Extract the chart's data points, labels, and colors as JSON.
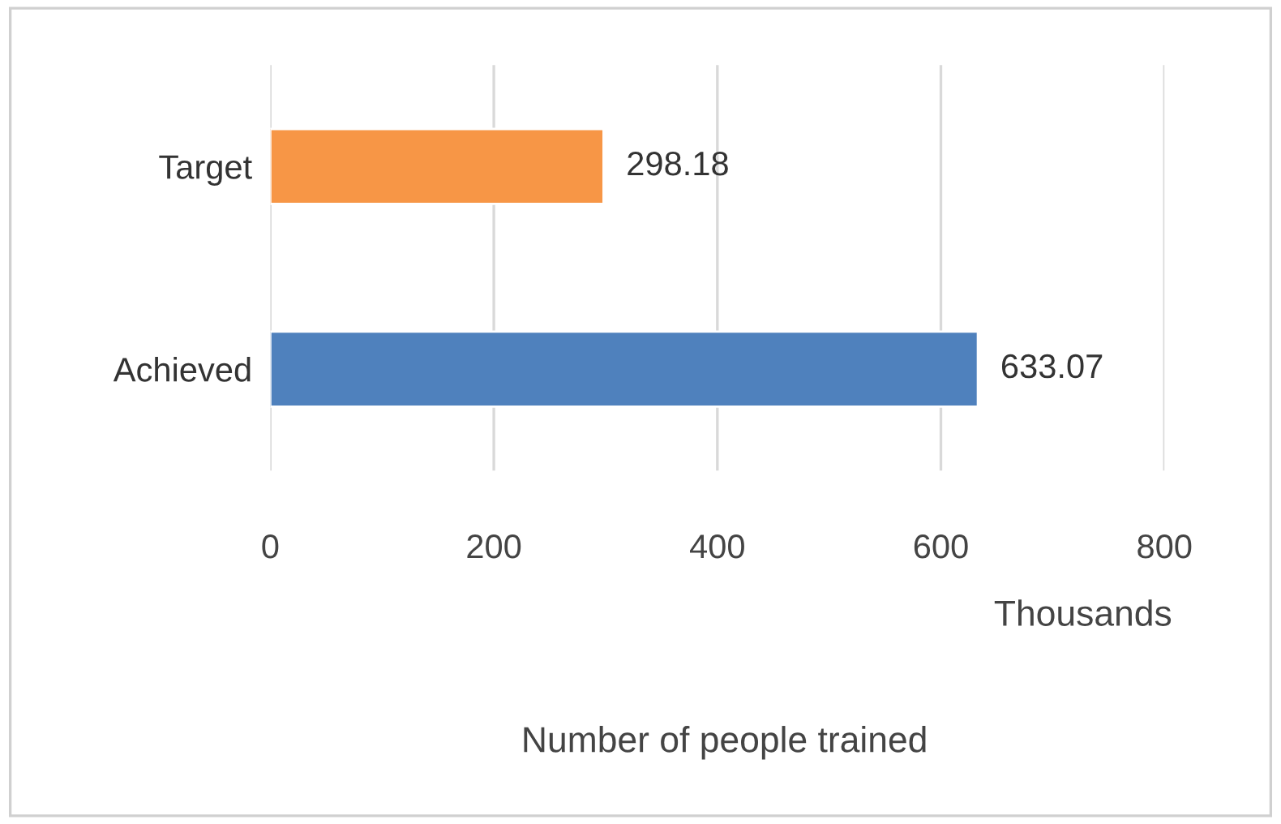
{
  "chart_data": {
    "type": "bar",
    "orientation": "horizontal",
    "xlabel": "Number of people trained",
    "categories": [
      "Target",
      "Achieved"
    ],
    "values": [
      298.18,
      633.07
    ],
    "colors": [
      "#f79646",
      "#4f81bd"
    ],
    "xlim": [
      0,
      800
    ],
    "xticks": [
      0,
      200,
      400,
      600,
      800
    ],
    "grid": "x",
    "data_labels": true,
    "annotations": [
      "Thousands"
    ]
  }
}
